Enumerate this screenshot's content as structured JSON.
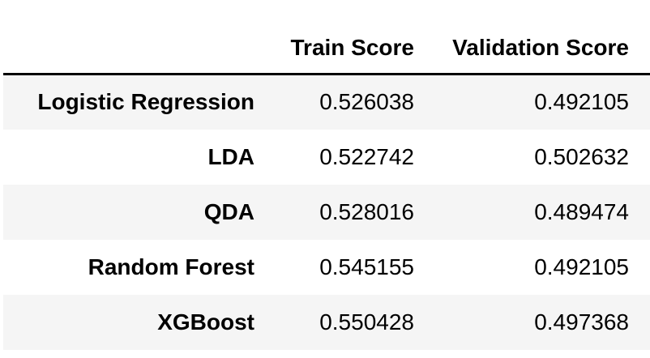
{
  "table": {
    "columns": [
      "Train Score",
      "Validation Score"
    ],
    "rows": [
      {
        "model": "Logistic Regression",
        "train": "0.526038",
        "validation": "0.492105"
      },
      {
        "model": "LDA",
        "train": "0.522742",
        "validation": "0.502632"
      },
      {
        "model": "QDA",
        "train": "0.528016",
        "validation": "0.489474"
      },
      {
        "model": "Random Forest",
        "train": "0.545155",
        "validation": "0.492105"
      },
      {
        "model": "XGBoost",
        "train": "0.550428",
        "validation": "0.497368"
      }
    ]
  }
}
